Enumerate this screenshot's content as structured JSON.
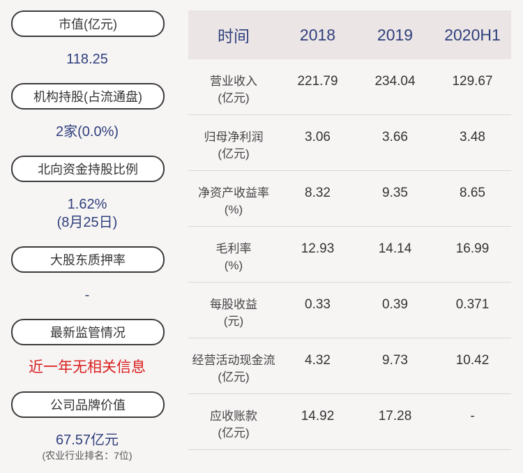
{
  "left": [
    {
      "label": "市值(亿元)",
      "value": "118.25"
    },
    {
      "label": "机构持股(占流通盘)",
      "value": "2家(0.0%)"
    },
    {
      "label": "北向资金持股比例",
      "value": "1.62%",
      "value2": "(8月25日)"
    },
    {
      "label": "大股东质押率",
      "value": "-"
    },
    {
      "label": "最新监管情况",
      "value": "近一年无相关信息"
    },
    {
      "label": "公司品牌价值",
      "value": "67.57亿元",
      "note": "(农业行业排名：7位)"
    }
  ],
  "table": {
    "headers": [
      "时间",
      "2018",
      "2019",
      "2020H1"
    ],
    "rows": [
      {
        "label1": "营业收入",
        "label2": "(亿元)",
        "values": [
          "221.79",
          "234.04",
          "129.67"
        ]
      },
      {
        "label1": "归母净利润",
        "label2": "(亿元)",
        "values": [
          "3.06",
          "3.66",
          "3.48"
        ]
      },
      {
        "label1": "净资产收益率",
        "label2": "(%)",
        "values": [
          "8.32",
          "9.35",
          "8.65"
        ]
      },
      {
        "label1": "毛利率",
        "label2": "(%)",
        "values": [
          "12.93",
          "14.14",
          "16.99"
        ]
      },
      {
        "label1": "每股收益",
        "label2": "(元)",
        "values": [
          "0.33",
          "0.39",
          "0.371"
        ]
      },
      {
        "label1": "经营活动现金流",
        "label2": "(亿元)",
        "values": [
          "4.32",
          "9.73",
          "10.42"
        ]
      },
      {
        "label1": "应收账款",
        "label2": "(亿元)",
        "values": [
          "14.92",
          "17.28",
          "-"
        ]
      }
    ]
  },
  "colors": {
    "accent_text": "#2e3f7c",
    "alert_text": "#d91e1e",
    "header_bg": "#ebe5e5"
  }
}
